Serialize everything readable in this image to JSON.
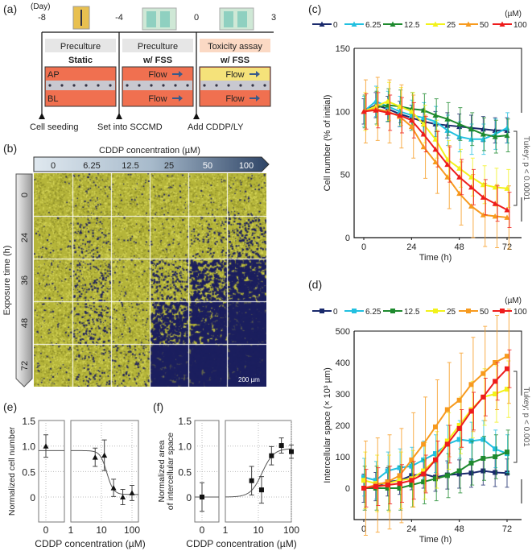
{
  "panel_labels": {
    "a": "(a)",
    "b": "(b)",
    "c": "(c)",
    "d": "(d)",
    "e": "(e)",
    "f": "(f)"
  },
  "panel_a": {
    "day_label": "(Day)",
    "days": [
      "-8",
      "-4",
      "0",
      "3"
    ],
    "stages": [
      {
        "header": "Preculture",
        "mode": "Static",
        "top": "AP",
        "bottom": "BL",
        "header_color": "#e6e6e6",
        "top_color": "#f07050"
      },
      {
        "header": "Preculture",
        "mode": "w/  FSS",
        "top": "Flow",
        "bottom": "Flow",
        "header_color": "#e6e6e6",
        "top_color": "#f07050"
      },
      {
        "header": "Toxicity assay",
        "mode": "w/  FSS",
        "top": "Flow",
        "bottom": "Flow",
        "header_color": "#fbd9c4",
        "top_color": "#f5e27a"
      }
    ],
    "events": [
      "Cell seeding",
      "Set into SCCMD",
      "Add CDDP/LY"
    ]
  },
  "panel_b": {
    "title": "CDDP concentration (µM)",
    "concentrations": [
      "0",
      "6.25",
      "12.5",
      "25",
      "50",
      "100"
    ],
    "row_axis_label": "Exposure time (h)",
    "times": [
      "0",
      "24",
      "36",
      "48",
      "72"
    ],
    "scale_bar": "200 µm",
    "colors": {
      "cells": "#b5b53a",
      "space": "#1c1f5e"
    },
    "intercellular_fraction": [
      [
        0.0,
        0.05,
        0.02,
        0.03,
        0.02,
        0.05
      ],
      [
        0.02,
        0.1,
        0.02,
        0.03,
        0.1,
        0.2
      ],
      [
        0.03,
        0.15,
        0.03,
        0.2,
        0.45,
        0.65
      ],
      [
        0.03,
        0.15,
        0.05,
        0.55,
        0.7,
        0.85
      ],
      [
        0.03,
        0.1,
        0.1,
        0.8,
        0.9,
        0.92
      ]
    ]
  },
  "chart_data": [
    {
      "id": "c",
      "type": "line",
      "legend_unit": "(µM)",
      "xlabel": "Time (h)",
      "ylabel": "Cell number (% of initial)",
      "xlim": [
        0,
        72
      ],
      "ylim": [
        0,
        150
      ],
      "xticks": [
        "0",
        "24",
        "48",
        "72"
      ],
      "yticks": [
        "0",
        "50",
        "100",
        "150"
      ],
      "annotation": "Tukey; p < 0.0001",
      "x": [
        0,
        6,
        12,
        18,
        24,
        30,
        36,
        42,
        48,
        54,
        60,
        66,
        72
      ],
      "series": [
        {
          "name": "0",
          "color": "#1a2a6c",
          "marker": "triangle",
          "values": [
            100,
            105,
            102,
            98,
            95,
            92,
            90,
            89,
            88,
            87,
            86,
            85,
            85
          ],
          "err": 10
        },
        {
          "name": "6.25",
          "color": "#22c0e0",
          "marker": "triangle",
          "values": [
            100,
            108,
            104,
            100,
            97,
            95,
            92,
            85,
            80,
            78,
            78,
            82,
            87
          ],
          "err": 12
        },
        {
          "name": "12.5",
          "color": "#1e8a2e",
          "marker": "triangle",
          "values": [
            100,
            103,
            105,
            104,
            102,
            101,
            97,
            94,
            90,
            86,
            82,
            80,
            81
          ],
          "err": 13
        },
        {
          "name": "25",
          "color": "#f2f21a",
          "marker": "triangle",
          "values": [
            100,
            104,
            108,
            104,
            100,
            90,
            78,
            62,
            55,
            48,
            42,
            40,
            39
          ],
          "err": 15
        },
        {
          "name": "50",
          "color": "#f79a1e",
          "marker": "triangle",
          "values": [
            100,
            102,
            100,
            96,
            88,
            72,
            60,
            48,
            35,
            25,
            18,
            17,
            16
          ],
          "err": 25
        },
        {
          "name": "100",
          "color": "#ee1c1c",
          "marker": "triangle",
          "values": [
            100,
            101,
            99,
            97,
            93,
            82,
            70,
            58,
            48,
            40,
            32,
            27,
            22
          ],
          "err": 14
        }
      ]
    },
    {
      "id": "d",
      "type": "line",
      "legend_unit": "(µM)",
      "xlabel": "Time (h)",
      "ylabel": "Intercellular space (× 10³ µm)",
      "xlim": [
        0,
        72
      ],
      "ylim": [
        -100,
        500
      ],
      "xticks": [
        "0",
        "24",
        "48",
        "72"
      ],
      "yticks": [
        "0",
        "100",
        "200",
        "300",
        "400",
        "500"
      ],
      "annotation": "Tukey; p < 0.001",
      "x": [
        0,
        6,
        12,
        18,
        24,
        30,
        36,
        42,
        48,
        54,
        60,
        66,
        72
      ],
      "series": [
        {
          "name": "0",
          "color": "#1a2a6c",
          "marker": "square",
          "values": [
            0,
            5,
            20,
            25,
            40,
            45,
            35,
            42,
            45,
            48,
            55,
            50,
            48
          ],
          "err": 45
        },
        {
          "name": "6.25",
          "color": "#22c0e0",
          "marker": "square",
          "values": [
            35,
            25,
            55,
            65,
            70,
            90,
            110,
            140,
            155,
            150,
            155,
            125,
            110
          ],
          "err": 60
        },
        {
          "name": "12.5",
          "color": "#1e8a2e",
          "marker": "square",
          "values": [
            0,
            0,
            0,
            0,
            10,
            20,
            30,
            40,
            55,
            80,
            95,
            100,
            115
          ],
          "err": 70
        },
        {
          "name": "25",
          "color": "#f2f21a",
          "marker": "square",
          "values": [
            25,
            15,
            15,
            25,
            30,
            55,
            90,
            150,
            200,
            250,
            290,
            300,
            315
          ],
          "err": 90
        },
        {
          "name": "50",
          "color": "#f79a1e",
          "marker": "square",
          "values": [
            0,
            10,
            20,
            40,
            90,
            140,
            195,
            250,
            280,
            330,
            365,
            400,
            420
          ],
          "err": 150
        },
        {
          "name": "100",
          "color": "#ee1c1c",
          "marker": "square",
          "values": [
            0,
            5,
            10,
            15,
            25,
            45,
            90,
            140,
            190,
            245,
            290,
            340,
            380
          ],
          "err": 60
        }
      ]
    },
    {
      "id": "e",
      "type": "scatter",
      "xlabel": "CDDP concentration (µM)",
      "ylabel": "Normalized cell number",
      "xscale": "log (split axis with 0)",
      "ylim": [
        -0.5,
        1.5
      ],
      "xticks": [
        "0",
        "1",
        "10",
        "100"
      ],
      "yticks": [
        "0",
        "0.5",
        "1.0",
        "1.5"
      ],
      "marker": "triangle",
      "x": [
        0,
        6.25,
        12.5,
        25,
        50,
        100
      ],
      "y": [
        1.0,
        0.78,
        0.82,
        0.18,
        0.0,
        0.08
      ],
      "err": [
        0.22,
        0.18,
        0.3,
        0.17,
        0.15,
        0.15
      ],
      "fit": {
        "top": 0.91,
        "bottom": 0.05,
        "ec50": 15,
        "hill": -4
      }
    },
    {
      "id": "f",
      "type": "scatter",
      "xlabel": "CDDP concentration (µM)",
      "ylabel": "Normalized area of intercellular space",
      "ylabel_lines": [
        "Normalized  area",
        "of intercellular  space"
      ],
      "xscale": "log (split axis with 0)",
      "ylim": [
        -0.5,
        1.5
      ],
      "xticks": [
        "0",
        "1",
        "10",
        "100"
      ],
      "yticks": [
        "0",
        "0.5",
        "1.0",
        "1.5"
      ],
      "marker": "square",
      "x": [
        0,
        6.25,
        12.5,
        25,
        50,
        100
      ],
      "y": [
        0.0,
        0.32,
        0.14,
        0.81,
        1.01,
        0.89
      ],
      "err": [
        0.28,
        0.28,
        0.26,
        0.18,
        0.15,
        0.13
      ],
      "fit": {
        "top": 0.95,
        "bottom": 0.0,
        "ec50": 13,
        "hill": 2.5
      }
    }
  ]
}
